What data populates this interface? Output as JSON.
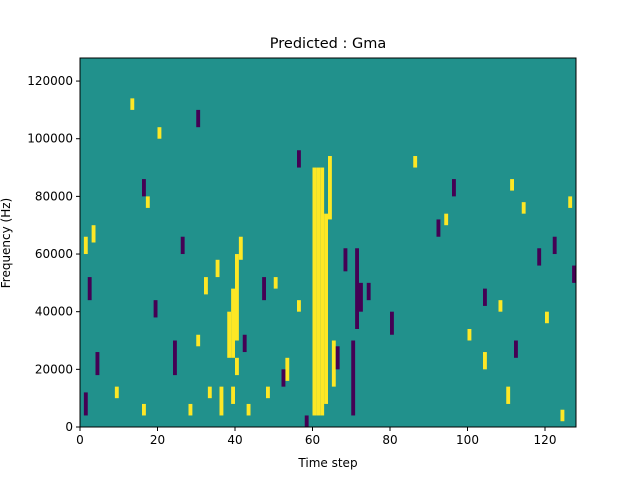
{
  "chart_data": {
    "type": "heatmap",
    "title": "Predicted : Gma",
    "xlabel": "Time step",
    "ylabel": "Frequency (Hz)",
    "xlim": [
      0,
      128
    ],
    "ylim": [
      0,
      128000
    ],
    "xticks": [
      0,
      20,
      40,
      60,
      80,
      100,
      120
    ],
    "yticks": [
      0,
      20000,
      40000,
      60000,
      80000,
      100000,
      120000
    ],
    "grid": false,
    "legend": "none",
    "colormap": "viridis",
    "value_levels": {
      "low": -1,
      "background": 0,
      "high": 1
    },
    "colors": {
      "background": "#21918c",
      "high": "#fde725",
      "low": "#440154"
    },
    "bin_height_hz": 4000,
    "high_cells": [
      [
        [
          60,
          4000,
          90000
        ],
        [
          61,
          4000,
          90000
        ],
        [
          62,
          4000,
          90000
        ],
        [
          63,
          8000,
          74000
        ]
      ],
      [
        [
          39,
          8000,
          14000
        ],
        [
          40,
          18000,
          24000
        ],
        [
          39,
          24000,
          48000
        ],
        [
          38,
          24000,
          40000
        ],
        [
          40,
          30000,
          60000
        ],
        [
          41,
          58000,
          66000
        ]
      ],
      [
        [
          64,
          72000,
          94000
        ],
        [
          65,
          14000,
          30000
        ],
        [
          32,
          46000,
          52000
        ]
      ],
      [
        [
          1,
          60000,
          66000
        ],
        [
          3,
          64000,
          70000
        ],
        [
          9,
          10000,
          14000
        ],
        [
          13,
          110000,
          114000
        ],
        [
          16,
          4000,
          8000
        ],
        [
          17,
          76000,
          80000
        ],
        [
          20,
          100000,
          104000
        ]
      ],
      [
        [
          28,
          4000,
          8000
        ],
        [
          30,
          28000,
          32000
        ],
        [
          33,
          10000,
          14000
        ],
        [
          35,
          52000,
          58000
        ],
        [
          36,
          4000,
          14000
        ],
        [
          43,
          4000,
          8000
        ]
      ],
      [
        [
          48,
          10000,
          14000
        ],
        [
          50,
          48000,
          52000
        ],
        [
          53,
          16000,
          24000
        ],
        [
          56,
          40000,
          44000
        ]
      ],
      [
        [
          86,
          90000,
          94000
        ],
        [
          94,
          70000,
          74000
        ],
        [
          100,
          30000,
          34000
        ],
        [
          104,
          20000,
          26000
        ],
        [
          108,
          40000,
          44000
        ],
        [
          110,
          8000,
          14000
        ]
      ],
      [
        [
          111,
          82000,
          86000
        ],
        [
          114,
          74000,
          78000
        ],
        [
          120,
          36000,
          40000
        ],
        [
          124,
          2000,
          6000
        ],
        [
          126,
          76000,
          80000
        ]
      ]
    ],
    "low_cells": [
      [
        [
          70,
          4000,
          30000
        ],
        [
          71,
          34000,
          62000
        ],
        [
          72,
          40000,
          50000
        ],
        [
          58,
          0,
          4000
        ]
      ],
      [
        [
          1,
          4000,
          12000
        ],
        [
          2,
          44000,
          52000
        ],
        [
          4,
          18000,
          26000
        ],
        [
          16,
          80000,
          86000
        ],
        [
          19,
          38000,
          44000
        ],
        [
          24,
          18000,
          30000
        ]
      ],
      [
        [
          26,
          60000,
          66000
        ],
        [
          30,
          104000,
          110000
        ],
        [
          42,
          26000,
          32000
        ],
        [
          47,
          44000,
          52000
        ],
        [
          52,
          14000,
          20000
        ],
        [
          56,
          90000,
          96000
        ]
      ],
      [
        [
          66,
          20000,
          28000
        ],
        [
          68,
          54000,
          62000
        ],
        [
          74,
          44000,
          50000
        ],
        [
          80,
          32000,
          40000
        ],
        [
          92,
          66000,
          72000
        ],
        [
          96,
          80000,
          86000
        ]
      ],
      [
        [
          104,
          42000,
          48000
        ],
        [
          112,
          24000,
          30000
        ],
        [
          118,
          56000,
          62000
        ],
        [
          122,
          60000,
          66000
        ],
        [
          127,
          50000,
          56000
        ]
      ]
    ]
  }
}
